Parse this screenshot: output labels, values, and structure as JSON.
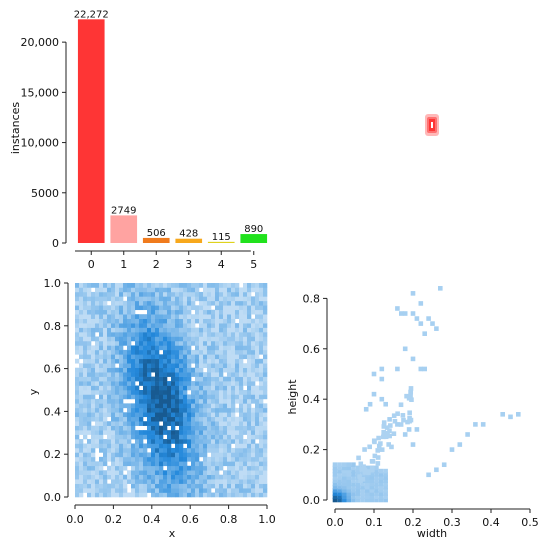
{
  "chart_data": [
    {
      "type": "bar",
      "categories": [
        "0",
        "1",
        "2",
        "3",
        "4",
        "5"
      ],
      "values": [
        22272,
        2749,
        506,
        428,
        115,
        890
      ],
      "value_labels": [
        "22,272",
        "2749",
        "506",
        "428",
        "115",
        "890"
      ],
      "colors": [
        "#fe3535",
        "#ffa3a1",
        "#f07b1d",
        "#f7a81d",
        "#dfd21d",
        "#21e21d"
      ],
      "ylabel": "instances",
      "ylim": [
        0,
        23200
      ],
      "yticks": [
        0,
        5000,
        10000,
        15000,
        20000
      ],
      "ytick_labels": [
        "0",
        "5000",
        "10,000",
        "15,000",
        "20,000"
      ]
    },
    {
      "type": "scatter",
      "description": "overlaid box outlines centred at (0.5, 0.5) for all labels",
      "color": "#fe3535",
      "points": [
        [
          0.5,
          0.5
        ]
      ]
    },
    {
      "type": "heatmap",
      "xlabel": "x",
      "ylabel": "y",
      "xlim": [
        0,
        1
      ],
      "ylim": [
        0,
        1
      ],
      "xticks": [
        0.0,
        0.2,
        0.4,
        0.6,
        0.8,
        1.0
      ],
      "xtick_labels": [
        "0.0",
        "0.2",
        "0.4",
        "0.6",
        "0.8",
        "1.0"
      ],
      "yticks": [
        0.0,
        0.2,
        0.4,
        0.6,
        0.8,
        1.0
      ],
      "ytick_labels": [
        "0.0",
        "0.2",
        "0.4",
        "0.6",
        "0.8",
        "1.0"
      ],
      "color": "#1f77c4",
      "density_centers": [
        [
          0.45,
          0.5
        ],
        [
          0.55,
          0.35
        ]
      ]
    },
    {
      "type": "heatmap",
      "xlabel": "width",
      "ylabel": "height",
      "xlim": [
        -0.03,
        0.5
      ],
      "ylim": [
        -0.03,
        0.87
      ],
      "xticks": [
        0.0,
        0.1,
        0.2,
        0.3,
        0.4,
        0.5
      ],
      "xtick_labels": [
        "0.0",
        "0.1",
        "0.2",
        "0.3",
        "0.4",
        "0.5"
      ],
      "yticks": [
        0.0,
        0.2,
        0.4,
        0.6,
        0.8
      ],
      "ytick_labels": [
        "0.0",
        "0.2",
        "0.4",
        "0.6",
        "0.8"
      ],
      "color": "#1f77c4"
    }
  ]
}
